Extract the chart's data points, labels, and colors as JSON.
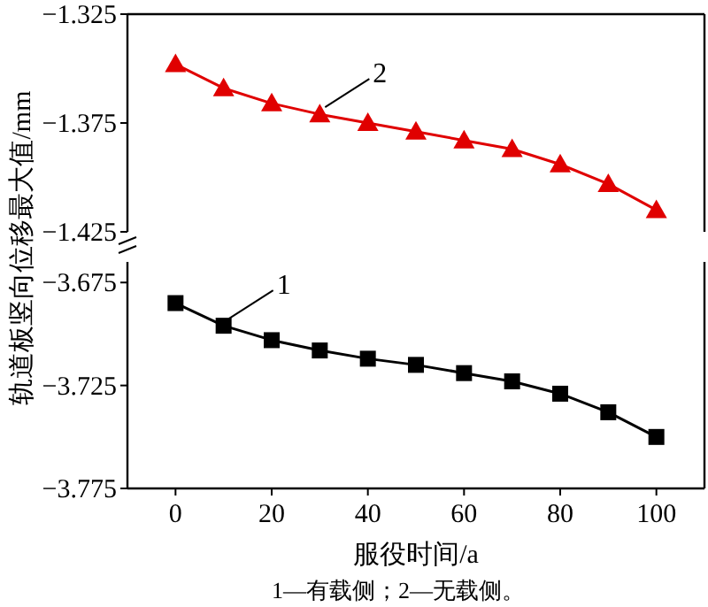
{
  "chart_data": [
    {
      "type": "line",
      "x": [
        0,
        10,
        20,
        30,
        40,
        50,
        60,
        70,
        80,
        90,
        100
      ],
      "xlim": [
        -10,
        110
      ],
      "ylim": [
        -1.425,
        -1.325
      ],
      "yticks": [
        -1.325,
        -1.375,
        -1.425
      ],
      "tick_labels": "y",
      "marker": "triangle",
      "series": [
        {
          "color": "#e00000",
          "values": [
            -1.348,
            -1.359,
            -1.366,
            -1.371,
            -1.375,
            -1.379,
            -1.383,
            -1.387,
            -1.394,
            -1.403,
            -1.415
          ]
        }
      ],
      "annotations": [
        {
          "text": "2",
          "x": 30,
          "y": -1.371
        }
      ]
    },
    {
      "type": "line",
      "x": [
        0,
        10,
        20,
        30,
        40,
        50,
        60,
        70,
        80,
        90,
        100
      ],
      "xlim": [
        -10,
        110
      ],
      "xticks": [
        0,
        20,
        40,
        60,
        80,
        100
      ],
      "ylim": [
        -3.775,
        -3.665
      ],
      "yticks": [
        -3.675,
        -3.725,
        -3.775
      ],
      "marker": "square",
      "xlabel": "服役时间/a",
      "ylabel": "轨道板竖向位移最大值/mm",
      "series": [
        {
          "color": "#000000",
          "values": [
            -3.685,
            -3.696,
            -3.703,
            -3.708,
            -3.712,
            -3.715,
            -3.719,
            -3.723,
            -3.729,
            -3.738,
            -3.75
          ]
        }
      ],
      "annotations": [
        {
          "text": "1",
          "x": 10,
          "y": -3.696
        },
        "1—有载侧；2—无载侧。"
      ]
    }
  ]
}
